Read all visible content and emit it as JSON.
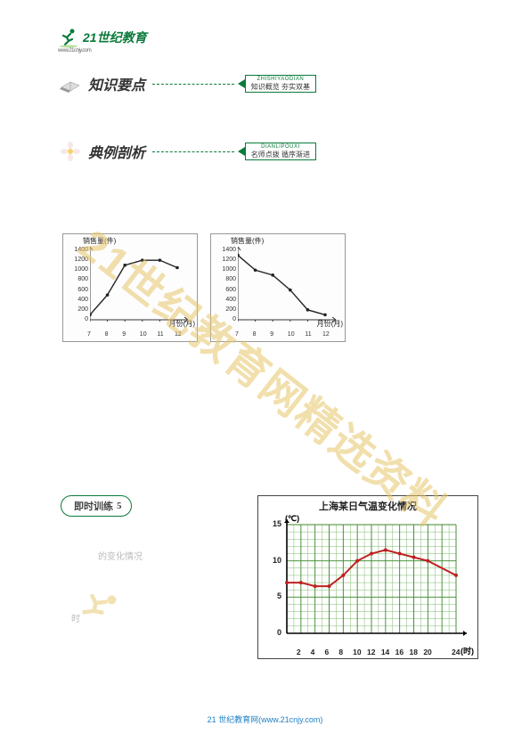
{
  "logo": {
    "text": "21世纪教育",
    "sub": "www.21cnjy.com"
  },
  "sections": [
    {
      "title": "知识要点",
      "badge_py": "ZHISHIYAODIAN",
      "badge_cn": "知识概览 夯实双基"
    },
    {
      "title": "典例剖析",
      "badge_py": "DIANLIPOUXI",
      "badge_cn": "名师点拨 循序渐进"
    }
  ],
  "mini_charts": [
    {
      "ylabel": "销售量(件)",
      "xlabel": "月份(月)",
      "yticks": [
        0,
        200,
        400,
        600,
        800,
        1000,
        1200,
        1400
      ],
      "xticks": [
        7,
        8,
        9,
        10,
        11,
        12
      ],
      "xvals": [
        7,
        8,
        9,
        10,
        11,
        12
      ],
      "yvals": [
        100,
        500,
        1100,
        1200,
        1200,
        1050
      ],
      "ylim": [
        0,
        1400
      ],
      "xlim": [
        7,
        12
      ],
      "line_color": "#222222"
    },
    {
      "ylabel": "销售量(件)",
      "xlabel": "月份(月)",
      "yticks": [
        0,
        200,
        400,
        600,
        800,
        1000,
        1200,
        1400
      ],
      "xticks": [
        7,
        8,
        9,
        10,
        11,
        12
      ],
      "xvals": [
        7,
        8,
        9,
        10,
        11,
        12
      ],
      "yvals": [
        1300,
        1000,
        900,
        600,
        200,
        100
      ],
      "ylim": [
        0,
        1400
      ],
      "xlim": [
        7,
        12
      ],
      "line_color": "#222222"
    }
  ],
  "practice": {
    "label": "即时训练",
    "num": "5"
  },
  "big_chart": {
    "title": "上海某日气温变化情况",
    "ylabel": "(℃)",
    "xlabel": "(时)",
    "yticks": [
      0,
      5,
      10,
      15
    ],
    "xticks": [
      2,
      4,
      6,
      8,
      10,
      12,
      14,
      16,
      18,
      20,
      24
    ],
    "xvals": [
      0,
      2,
      4,
      6,
      8,
      10,
      12,
      14,
      16,
      18,
      20,
      24
    ],
    "yvals": [
      7,
      7,
      6.5,
      6.5,
      8,
      10,
      11,
      11.5,
      11,
      10.5,
      10,
      8
    ],
    "ylim": [
      0,
      15
    ],
    "xlim": [
      0,
      24
    ],
    "line_color": "#c02020",
    "grid_minor_color": "#7fb86f",
    "grid_major_color": "#3d8a2e"
  },
  "faded": {
    "t1": "的变化情况",
    "t2": "时"
  },
  "watermark": "21世纪教育网精选资料",
  "footer": {
    "text": "21 世纪教育网",
    "url": "(www.21cnjy.com)"
  }
}
